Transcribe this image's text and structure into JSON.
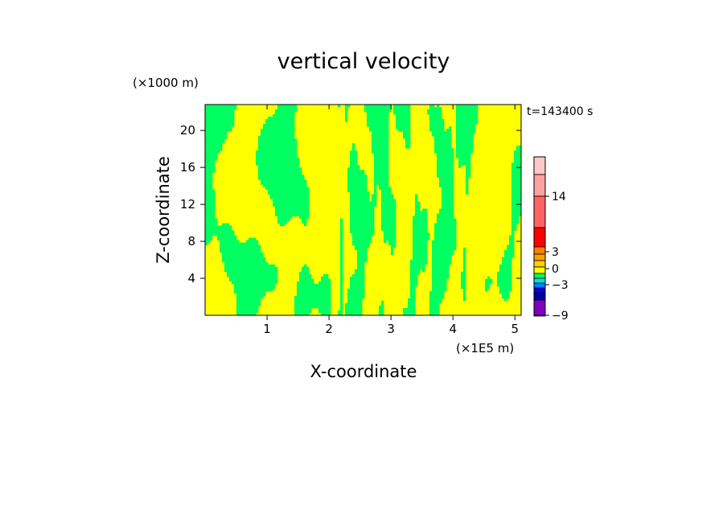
{
  "chart_data": {
    "type": "heatmap",
    "title": "vertical velocity",
    "xlabel": "X-coordinate",
    "ylabel": "Z-coordinate",
    "x_unit": "(×1E5 m)",
    "y_unit": "(×1000 m)",
    "time_label": "t=143400 s",
    "x_ticks": [
      "1",
      "2",
      "3",
      "4",
      "5"
    ],
    "x_tick_values": [
      1,
      2,
      3,
      4,
      5
    ],
    "y_ticks": [
      "4",
      "8",
      "12",
      "16",
      "20"
    ],
    "y_tick_values": [
      4,
      8,
      12,
      16,
      20
    ],
    "xlim": [
      0,
      5.1
    ],
    "ylim": [
      0,
      22.8
    ],
    "colorbar": {
      "tick_labels": [
        "14",
        "3",
        "0",
        "−3",
        "−9"
      ],
      "tick_values": [
        14,
        3,
        0,
        -3,
        -9
      ],
      "levels": [
        {
          "value": 20,
          "color": "#ffc8c8"
        },
        {
          "value": 17,
          "color": "#ffa0a0"
        },
        {
          "value": 11,
          "color": "#ff6464"
        },
        {
          "value": 6,
          "color": "#ff0000"
        },
        {
          "value": 3,
          "color": "#ff8000"
        },
        {
          "value": 2,
          "color": "#ffa000"
        },
        {
          "value": 1,
          "color": "#ffd000"
        },
        {
          "value": 0.5,
          "color": "#ffff00"
        },
        {
          "value": -0.5,
          "color": "#00ff60"
        },
        {
          "value": -1,
          "color": "#00e0e0"
        },
        {
          "value": -2,
          "color": "#0080ff"
        },
        {
          "value": -3,
          "color": "#0000ff"
        },
        {
          "value": -5,
          "color": "#0000a0"
        },
        {
          "value": -7,
          "color": "#8000c0"
        },
        {
          "value": -9,
          "color": "#ff00c0"
        }
      ]
    },
    "field_colors": {
      "positive": "#ffff00",
      "negative": "#00ff60"
    }
  }
}
